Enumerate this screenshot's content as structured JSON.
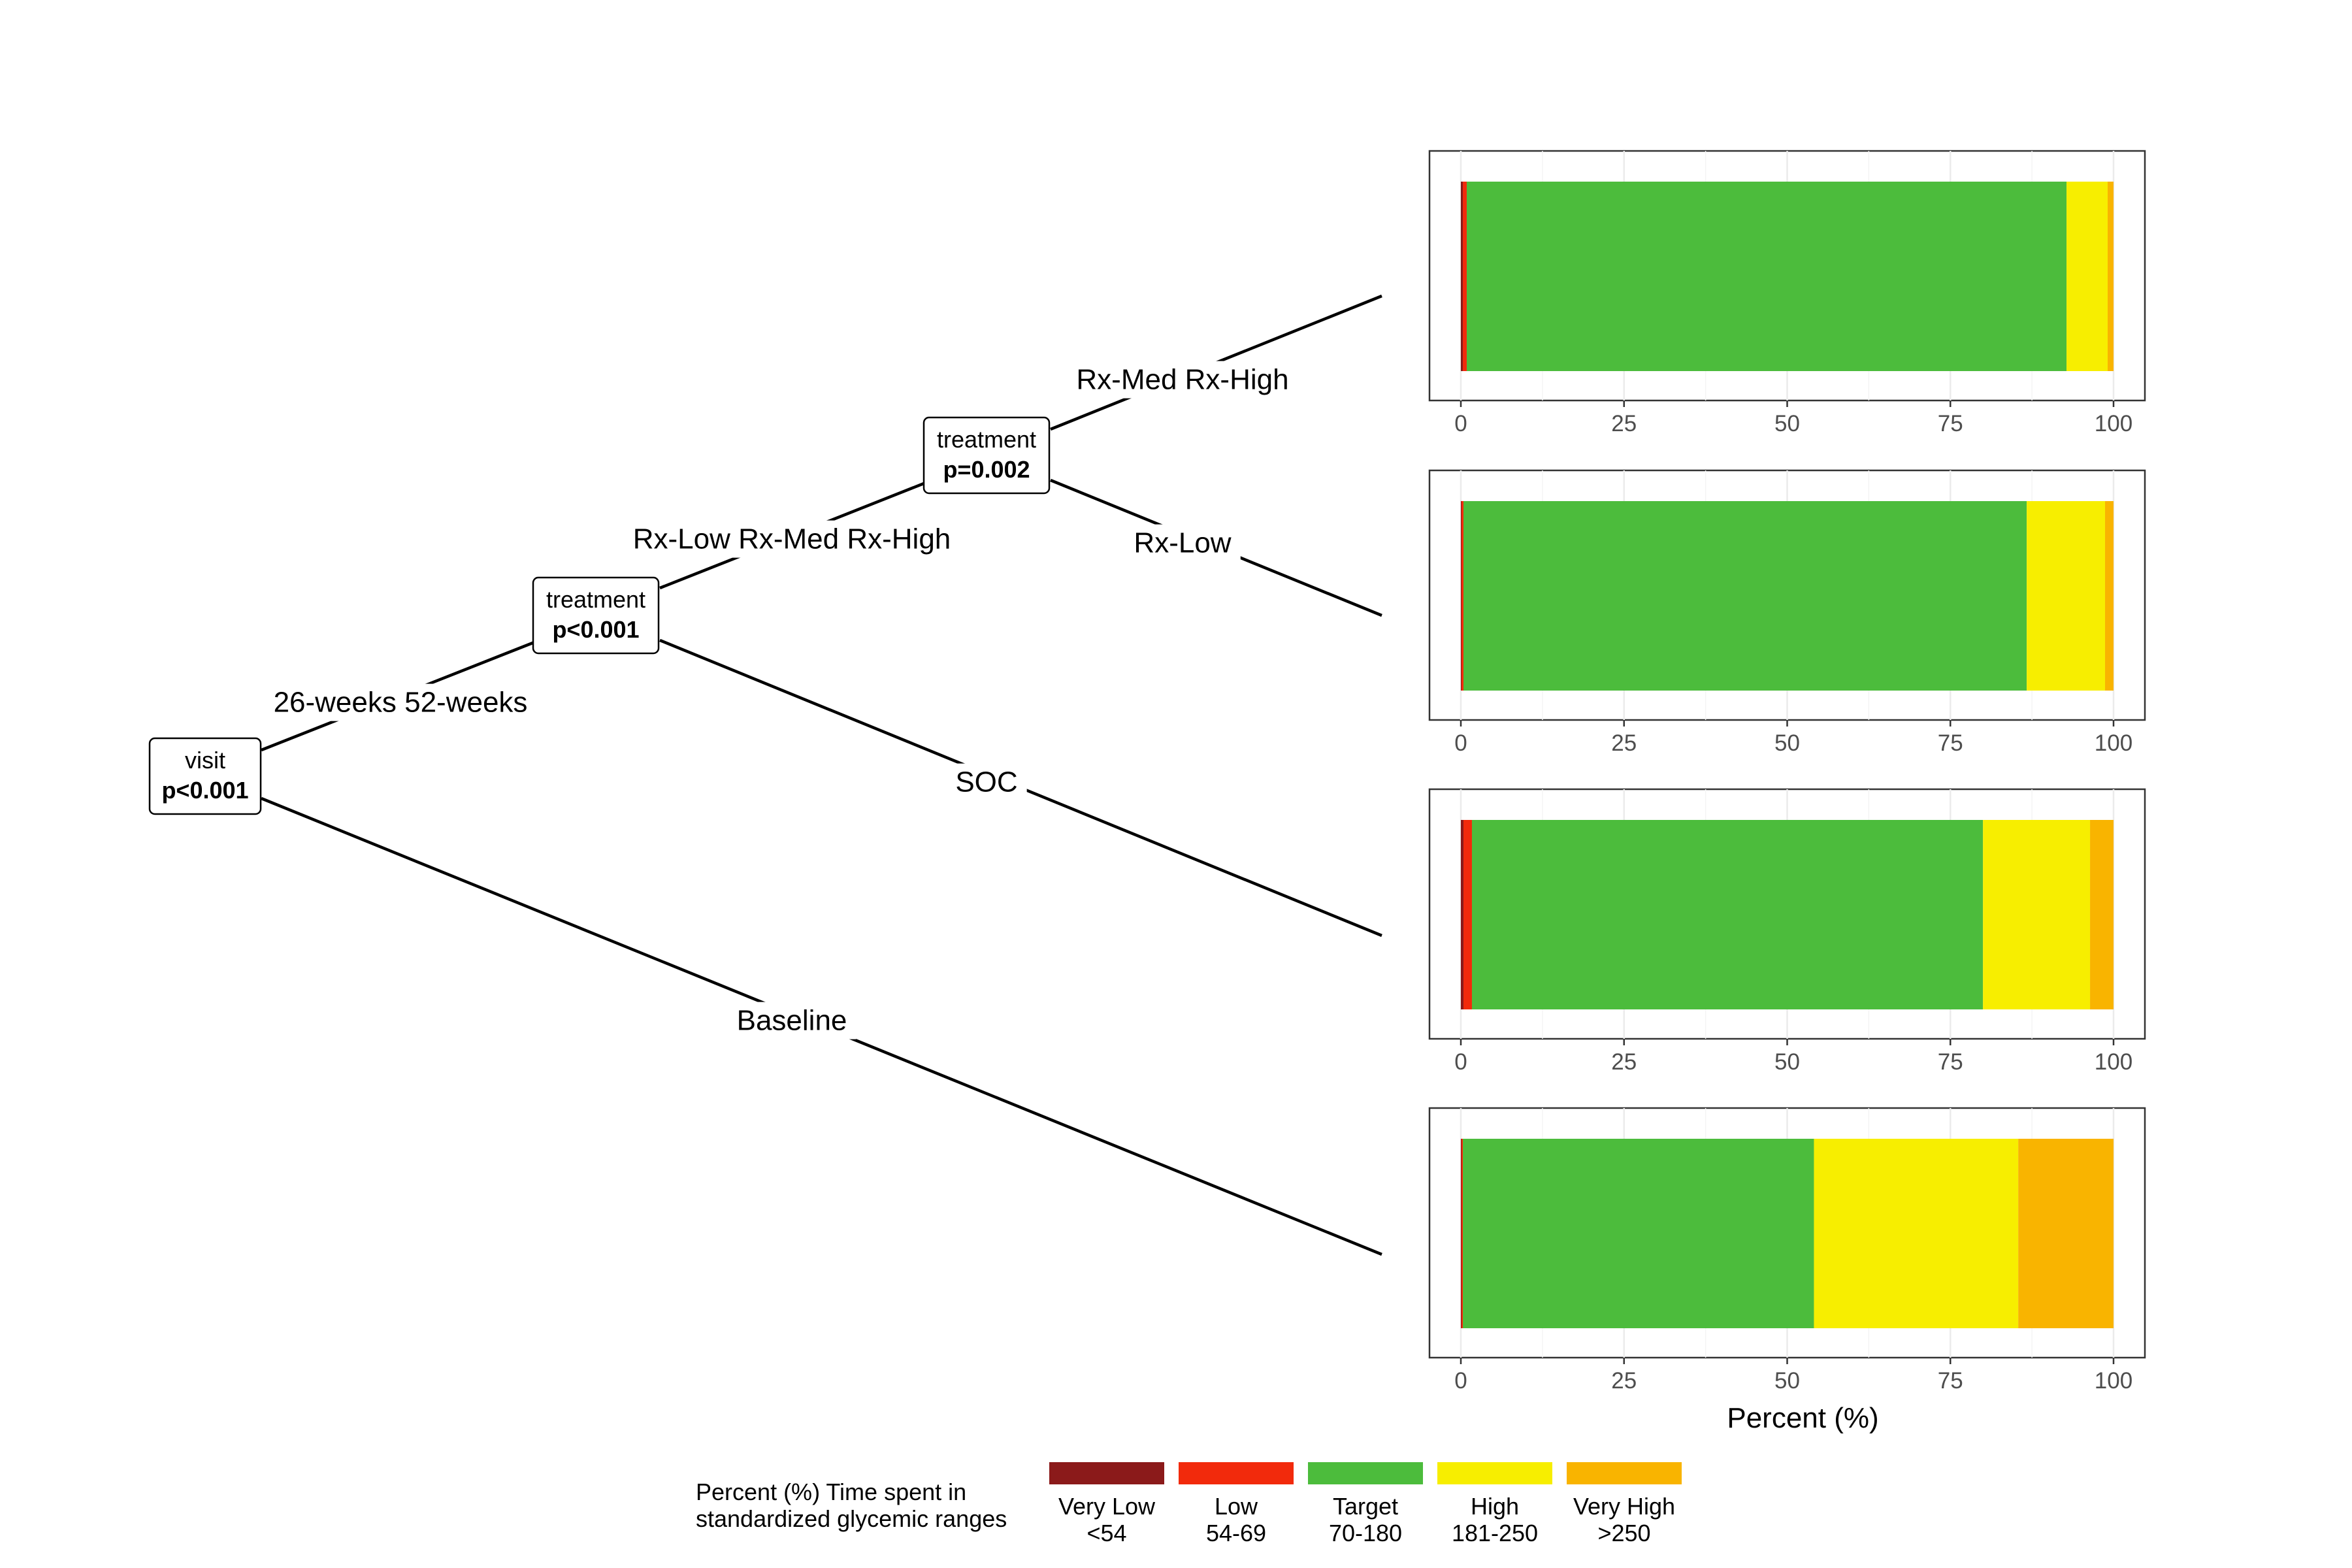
{
  "tree": {
    "nodes": [
      {
        "id": "visit",
        "variable": "visit",
        "p": "p<0.001"
      },
      {
        "id": "treatment1",
        "variable": "treatment",
        "p": "p<0.001"
      },
      {
        "id": "treatment2",
        "variable": "treatment",
        "p": "p=0.002"
      }
    ],
    "edges": [
      {
        "id": "visit-to-treatment1",
        "label": "26-weeks 52-weeks"
      },
      {
        "id": "visit-to-baseline",
        "label": "Baseline"
      },
      {
        "id": "treatment1-to-treatment2",
        "label": "Rx-Low Rx-Med Rx-High"
      },
      {
        "id": "treatment1-to-soc",
        "label": "SOC"
      },
      {
        "id": "treatment2-to-medhigh",
        "label": "Rx-Med Rx-High"
      },
      {
        "id": "treatment2-to-low",
        "label": "Rx-Low"
      }
    ]
  },
  "chart_data": {
    "type": "bar",
    "orientation": "horizontal",
    "stacked": true,
    "xlabel": "Percent (%)",
    "xlim": [
      0,
      100
    ],
    "xticks": [
      0,
      25,
      50,
      75,
      100
    ],
    "grid": true,
    "categories": [
      "Very Low <54",
      "Low 54-69",
      "Target 70-180",
      "High 181-250",
      "Very High >250"
    ],
    "panels": [
      {
        "id": "rx-med-rx-high",
        "values": [
          0.3,
          0.6,
          91.9,
          6.3,
          0.9
        ]
      },
      {
        "id": "rx-low",
        "values": [
          0.1,
          0.3,
          86.3,
          12.0,
          1.3
        ]
      },
      {
        "id": "soc",
        "values": [
          0.4,
          1.3,
          78.3,
          16.4,
          3.6
        ]
      },
      {
        "id": "baseline",
        "values": [
          0.1,
          0.2,
          53.8,
          31.3,
          14.6
        ]
      }
    ]
  },
  "legend": {
    "title_line1": "Percent (%) Time spent in",
    "title_line2": "standardized glycemic ranges",
    "items": [
      {
        "line1": "Very Low",
        "line2": "<54",
        "color": "#8b1a1a"
      },
      {
        "line1": "Low",
        "line2": "54-69",
        "color": "#f22a0c"
      },
      {
        "line1": "Target",
        "line2": "70-180",
        "color": "#4cbc3c"
      },
      {
        "line1": "High",
        "line2": "181-250",
        "color": "#f7ee00"
      },
      {
        "line1": "Very High",
        "line2": ">250",
        "color": "#f9b400"
      }
    ]
  }
}
